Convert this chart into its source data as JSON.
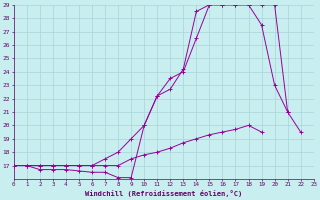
{
  "xlabel": "Windchill (Refroidissement éolien,°C)",
  "xlim": [
    0,
    23
  ],
  "ylim": [
    16,
    29
  ],
  "xticks": [
    0,
    1,
    2,
    3,
    4,
    5,
    6,
    7,
    8,
    9,
    10,
    11,
    12,
    13,
    14,
    15,
    16,
    17,
    18,
    19,
    20,
    21,
    22,
    23
  ],
  "yticks": [
    17,
    18,
    19,
    20,
    21,
    22,
    23,
    24,
    25,
    26,
    27,
    28,
    29
  ],
  "bg_color": "#c8eef0",
  "grid_color": "#a8d4d8",
  "line_color": "#990099",
  "line1_x": [
    0,
    1,
    2,
    3,
    4,
    5,
    6,
    7,
    8,
    9,
    10,
    11,
    12,
    13,
    14,
    15,
    16,
    17,
    18,
    19,
    20,
    21,
    22,
    23
  ],
  "line1_y": [
    17,
    17,
    16.7,
    16.7,
    16.7,
    16.6,
    16.5,
    16.5,
    16.1,
    16.1,
    20.0,
    22.2,
    22.7,
    24.2,
    28.5,
    29.0,
    29.0,
    29.0,
    29.0,
    29.0,
    29.0,
    21.0,
    19.5,
    null
  ],
  "line2_x": [
    0,
    1,
    2,
    3,
    4,
    5,
    6,
    7,
    8,
    9,
    10,
    11,
    12,
    13,
    14,
    15,
    16,
    17,
    18,
    19,
    20,
    21,
    22,
    23
  ],
  "line2_y": [
    17,
    17,
    17,
    17,
    17,
    17,
    17,
    17.5,
    18.0,
    19.0,
    20.0,
    22.2,
    23.5,
    24.0,
    26.5,
    29.0,
    29.0,
    29.0,
    29.0,
    27.5,
    23.0,
    21.0,
    null,
    null
  ],
  "line3_x": [
    0,
    1,
    2,
    3,
    4,
    5,
    6,
    7,
    8,
    9,
    10,
    11,
    12,
    13,
    14,
    15,
    16,
    17,
    18,
    19,
    20,
    21,
    22,
    23
  ],
  "line3_y": [
    17,
    17,
    17,
    17,
    17,
    17,
    17,
    17,
    17,
    17.5,
    17.8,
    18.0,
    18.3,
    18.7,
    19.0,
    19.3,
    19.5,
    19.7,
    20.0,
    19.5,
    null,
    null,
    null,
    null
  ]
}
